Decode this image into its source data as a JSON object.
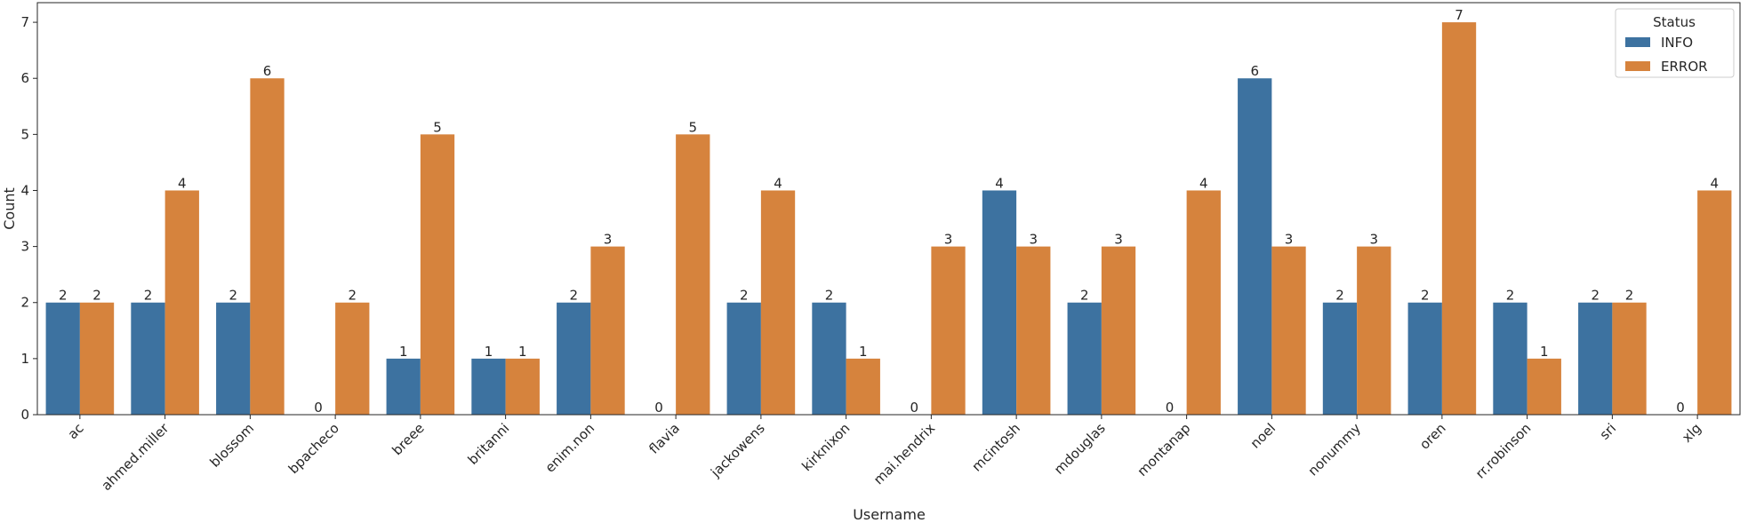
{
  "chart_data": {
    "type": "bar",
    "xlabel": "Username",
    "ylabel": "Count",
    "ylim": [
      0,
      7.35
    ],
    "yticks": [
      0,
      1,
      2,
      3,
      4,
      5,
      6,
      7
    ],
    "grid": false,
    "categories": [
      "ac",
      "ahmed.miller",
      "blossom",
      "bpacheco",
      "breee",
      "britanni",
      "enim.non",
      "flavia",
      "jackowens",
      "kirknixon",
      "mai.hendrix",
      "mcintosh",
      "mdouglas",
      "montanap",
      "noel",
      "nonummy",
      "oren",
      "rr.robinson",
      "sri",
      "xlg"
    ],
    "series": [
      {
        "name": "INFO",
        "color": "#3d72a0",
        "values": [
          2,
          2,
          2,
          0,
          1,
          1,
          2,
          0,
          2,
          2,
          0,
          4,
          2,
          0,
          6,
          2,
          2,
          2,
          2,
          0
        ]
      },
      {
        "name": "ERROR",
        "color": "#d6833d",
        "values": [
          2,
          4,
          6,
          2,
          5,
          1,
          3,
          5,
          4,
          1,
          3,
          3,
          3,
          4,
          3,
          3,
          7,
          1,
          2,
          4
        ]
      }
    ],
    "legend": {
      "title": "Status",
      "position": "top-right"
    }
  }
}
